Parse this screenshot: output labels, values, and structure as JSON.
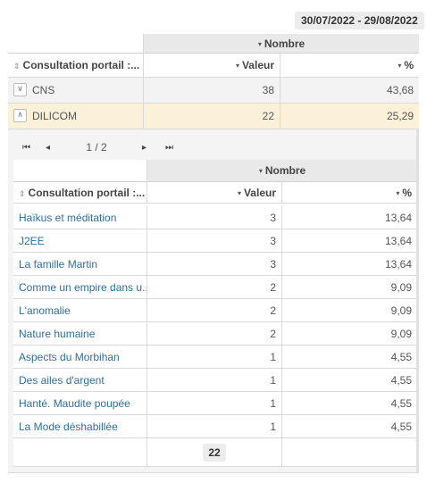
{
  "date_range": "30/07/2022 - 29/08/2022",
  "outer": {
    "group_header": "Nombre",
    "col1_header": "Consultation portail :...",
    "col2_header": "Valeur",
    "col3_header": "%",
    "rows": [
      {
        "label": "CNS",
        "valeur": "38",
        "pct": "43,68",
        "expanded": false
      },
      {
        "label": "DILICOM",
        "valeur": "22",
        "pct": "25,29",
        "expanded": true
      }
    ]
  },
  "pager": {
    "first": "⏮",
    "prev": "◂",
    "info": "1 / 2",
    "next": "▸",
    "last": "⏭"
  },
  "inner": {
    "group_header": "Nombre",
    "col1_header": "Consultation portail :...",
    "col2_header": "Valeur",
    "col3_header": "%",
    "rows": [
      {
        "label": "Haïkus et méditation",
        "valeur": "3",
        "pct": "13,64"
      },
      {
        "label": "J2EE",
        "valeur": "3",
        "pct": "13,64"
      },
      {
        "label": "La famille Martin",
        "valeur": "3",
        "pct": "13,64"
      },
      {
        "label": "Comme un empire dans u...",
        "valeur": "2",
        "pct": "9,09"
      },
      {
        "label": "L'anomalie",
        "valeur": "2",
        "pct": "9,09"
      },
      {
        "label": "Nature humaine",
        "valeur": "2",
        "pct": "9,09"
      },
      {
        "label": "Aspects du Morbihan",
        "valeur": "1",
        "pct": "4,55"
      },
      {
        "label": "Des ailes d'argent",
        "valeur": "1",
        "pct": "4,55"
      },
      {
        "label": "Hanté. Maudite poupée",
        "valeur": "1",
        "pct": "4,55"
      },
      {
        "label": "La Mode déshabillée",
        "valeur": "1",
        "pct": "4,55"
      }
    ],
    "total": "22"
  },
  "icons": {
    "caret_down": "▾",
    "sort": "⇕",
    "expand": "∨",
    "collapse": "∧"
  }
}
